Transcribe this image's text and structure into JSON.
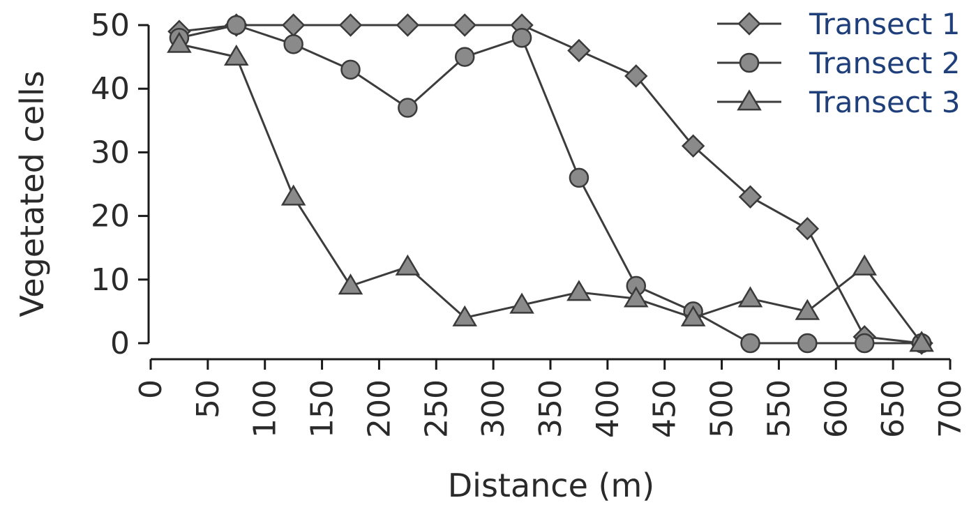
{
  "chart_data": {
    "type": "line",
    "xlabel": "Distance (m)",
    "ylabel": "Vegetated cells",
    "xlim": [
      0,
      700
    ],
    "ylim": [
      0,
      50
    ],
    "x_ticks": [
      "0",
      "50",
      "100",
      "150",
      "200",
      "250",
      "300",
      "350",
      "400",
      "450",
      "500",
      "550",
      "600",
      "650",
      "700"
    ],
    "y_ticks": [
      "0",
      "10",
      "20",
      "30",
      "40",
      "50"
    ],
    "grid": false,
    "legend_position": "top-right",
    "x": [
      25,
      75,
      125,
      175,
      225,
      275,
      325,
      375,
      425,
      475,
      525,
      575,
      625,
      675
    ],
    "series": [
      {
        "name": "Transect 1",
        "marker": "diamond",
        "values": [
          49,
          50,
          50,
          50,
          50,
          50,
          50,
          46,
          42,
          31,
          23,
          18,
          1,
          0
        ]
      },
      {
        "name": "Transect 2",
        "marker": "circle",
        "values": [
          48,
          50,
          47,
          43,
          37,
          45,
          48,
          26,
          9,
          5,
          0,
          0,
          0,
          0
        ]
      },
      {
        "name": "Transect 3",
        "marker": "triangle",
        "values": [
          47,
          45,
          23,
          9,
          12,
          4,
          6,
          8,
          7,
          4,
          7,
          5,
          12,
          0
        ]
      }
    ],
    "colors": {
      "marker_fill": "#8a8a8a",
      "line": "#3c3c3c",
      "text": "#1f3f7a"
    }
  }
}
